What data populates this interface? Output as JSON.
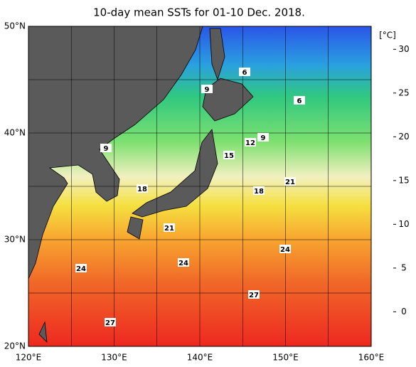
{
  "title": "10-day mean SSTs for 01-10 Dec. 2018.",
  "lon_labels": [
    "120°E",
    "130°E",
    "140°E",
    "150°E",
    "160°E"
  ],
  "lat_labels": [
    "50°N",
    "40°N",
    "30°N",
    "20°N"
  ],
  "colorbar": {
    "unit": "[°C]",
    "range": [
      -2,
      31
    ],
    "ticks": [
      0,
      5,
      10,
      15,
      20,
      25,
      30
    ]
  },
  "contour_labels": [
    6,
    9,
    6,
    9,
    12,
    9,
    15,
    18,
    18,
    21,
    21,
    24,
    24,
    24,
    27,
    27
  ]
}
